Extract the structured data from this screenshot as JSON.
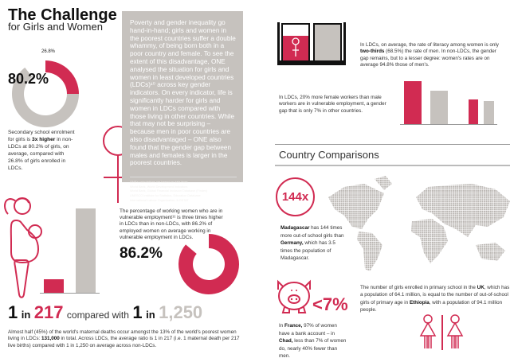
{
  "colors": {
    "accent": "#d12b52",
    "neutral": "#c6c2be",
    "text": "#222222"
  },
  "header": {
    "title": "The Challenge",
    "subtitle": "for Girls and Women"
  },
  "enrolment": {
    "ldc_value": "26.8%",
    "non_ldc_value": "80.2%",
    "ldc_percent": 26.8,
    "non_ldc_percent": 80.2,
    "text_pre": "Secondary school enrolment for girls is ",
    "text_bold": "3x higher",
    "text_post": " in non-LDCs at 80.2% of girls, on average, compared with 26.8% of girls enrolled in LDCs."
  },
  "intro": {
    "body": "Poverty and gender inequality go hand-in-hand; girls and women in the poorest countries suffer a double whammy, of being born both in a poor country and female. To see the extent of this disadvantage, ONE analysed the situation for girls and women in least developed countries (LDCs)¹⁰ across key gender indicators. On every indicator, life is significantly harder for girls and women in LDCs compared with those living in other countries. While that may not be surprising – because men in poor countries are also disadvantaged – ONE also found that the gender gap between males and females is larger in the poorest countries.",
    "sources": [
      "ONE's calculations are based on data from:",
      "World Bank, World Development Indicators",
      "World Bank, Global Financial Inclusion Database (Findex)",
      "UNESCO Institute for Statistics, Education Database",
      "International Labour Organisation, ILOSTAT"
    ]
  },
  "vulnerable": {
    "text": "The percentage of working women who are in vulnerable employment¹¹ is three times higher in LDCs than in non-LDCs, with 86.2% of employed women on average working in vulnerable employment in LDCs.",
    "value": "86.2%",
    "percent": 86.2
  },
  "maternal": {
    "one": "1",
    "in": "in",
    "ldc": "217",
    "compared": "compared with",
    "non_ldc": "1,250",
    "text_pre": "Almost half (45%) of the world's maternal deaths occur amongst the 13% of the world's poorest women living in LDCs: ",
    "text_bold": "131,000",
    "text_post": " in total. Across LDCs, the average ratio is 1 in 217 (i.e. 1 maternal death per 217 live births) compared with 1 in 1,250 on average across non-LDCs."
  },
  "literacy": {
    "text_pre": "In LDCs, on average, the rate of literacy among women is only ",
    "text_bold": "two-thirds",
    "text_post": " (68.5%) the rate of men. In non-LDCs, the gender gap remains, but to a lesser degree: women's rates are on average 94.8% those of men's.",
    "percent": 68.5
  },
  "employment_gap": {
    "text": "In LDCs, 20% more female workers than male workers are in vulnerable employment, a gender gap that is only 7% in other countries."
  },
  "comparisons": {
    "title": "Country Comparisons",
    "madagascar": {
      "value": "144x",
      "b1": "Madagascar",
      "t1": " has 144 times more out-of school girls than ",
      "b2": "Germany,",
      "t2": " which has 3.5 times the population of Madagascar."
    },
    "bank": {
      "value": "<7%",
      "t0": "In ",
      "b1": "France,",
      "t1": " 97% of women have a bank account – in ",
      "b2": "Chad,",
      "t2": " less than 7% of women do, nearly 40% fewer than men."
    },
    "uk": {
      "t0": "The number of girls enrolled in primary school in the ",
      "b1": "UK",
      "t1": ", which has a population of 64.1 million, is equal to the number of out-of-school girls of primary age in ",
      "b2": "Ethiopia",
      "t2": ", with a population of 94.1 million people."
    }
  }
}
